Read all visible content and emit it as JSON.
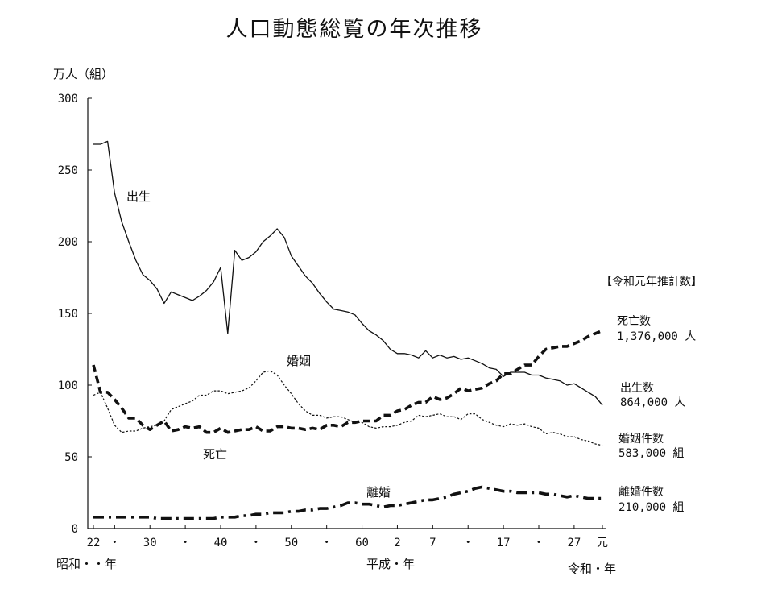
{
  "chart_data": {
    "type": "line",
    "title": "人口動態総覧の年次推移",
    "ylabel": "万人（組）",
    "ylim": [
      0,
      300
    ],
    "yticks": [
      0,
      50,
      100,
      150,
      200,
      250,
      300
    ],
    "xlim": [
      1947,
      2019
    ],
    "x_tick_labels": [
      {
        "x": 1947,
        "label": "22"
      },
      {
        "x": 1950,
        "label": "・"
      },
      {
        "x": 1955,
        "label": "30"
      },
      {
        "x": 1960,
        "label": "・"
      },
      {
        "x": 1965,
        "label": "40"
      },
      {
        "x": 1970,
        "label": "・"
      },
      {
        "x": 1975,
        "label": "50"
      },
      {
        "x": 1980,
        "label": "・"
      },
      {
        "x": 1985,
        "label": "60"
      },
      {
        "x": 1990,
        "label": "2"
      },
      {
        "x": 1995,
        "label": "7"
      },
      {
        "x": 2000,
        "label": "・"
      },
      {
        "x": 2005,
        "label": "17"
      },
      {
        "x": 2010,
        "label": "・"
      },
      {
        "x": 2015,
        "label": "27"
      },
      {
        "x": 2019,
        "label": "元"
      }
    ],
    "era_labels": {
      "showa": "昭和・・年",
      "heisei": "平成・年",
      "reiwa": "令和・年"
    },
    "legend_header": "【令和元年推計数】",
    "series": [
      {
        "name": "出生",
        "style": "solid-thin",
        "color": "#111111",
        "end_label": "出生数",
        "end_value": "864,000 人",
        "points": [
          [
            1947,
            268
          ],
          [
            1948,
            268
          ],
          [
            1949,
            270
          ],
          [
            1950,
            234
          ],
          [
            1951,
            214
          ],
          [
            1952,
            200
          ],
          [
            1953,
            187
          ],
          [
            1954,
            177
          ],
          [
            1955,
            173
          ],
          [
            1956,
            167
          ],
          [
            1957,
            157
          ],
          [
            1958,
            165
          ],
          [
            1959,
            163
          ],
          [
            1960,
            161
          ],
          [
            1961,
            159
          ],
          [
            1962,
            162
          ],
          [
            1963,
            166
          ],
          [
            1964,
            172
          ],
          [
            1965,
            182
          ],
          [
            1966,
            136
          ],
          [
            1967,
            194
          ],
          [
            1968,
            187
          ],
          [
            1969,
            189
          ],
          [
            1970,
            193
          ],
          [
            1971,
            200
          ],
          [
            1972,
            204
          ],
          [
            1973,
            209
          ],
          [
            1974,
            203
          ],
          [
            1975,
            190
          ],
          [
            1976,
            183
          ],
          [
            1977,
            176
          ],
          [
            1978,
            171
          ],
          [
            1979,
            164
          ],
          [
            1980,
            158
          ],
          [
            1981,
            153
          ],
          [
            1982,
            152
          ],
          [
            1983,
            151
          ],
          [
            1984,
            149
          ],
          [
            1985,
            143
          ],
          [
            1986,
            138
          ],
          [
            1987,
            135
          ],
          [
            1988,
            131
          ],
          [
            1989,
            125
          ],
          [
            1990,
            122
          ],
          [
            1991,
            122
          ],
          [
            1992,
            121
          ],
          [
            1993,
            119
          ],
          [
            1994,
            124
          ],
          [
            1995,
            119
          ],
          [
            1996,
            121
          ],
          [
            1997,
            119
          ],
          [
            1998,
            120
          ],
          [
            1999,
            118
          ],
          [
            2000,
            119
          ],
          [
            2001,
            117
          ],
          [
            2002,
            115
          ],
          [
            2003,
            112
          ],
          [
            2004,
            111
          ],
          [
            2005,
            106
          ],
          [
            2006,
            109
          ],
          [
            2007,
            109
          ],
          [
            2008,
            109
          ],
          [
            2009,
            107
          ],
          [
            2010,
            107
          ],
          [
            2011,
            105
          ],
          [
            2012,
            104
          ],
          [
            2013,
            103
          ],
          [
            2014,
            100
          ],
          [
            2015,
            101
          ],
          [
            2016,
            98
          ],
          [
            2017,
            95
          ],
          [
            2018,
            92
          ],
          [
            2019,
            86
          ]
        ]
      },
      {
        "name": "死亡",
        "style": "dashed-thick",
        "color": "#111111",
        "end_label": "死亡数",
        "end_value": "1,376,000 人",
        "points": [
          [
            1947,
            114
          ],
          [
            1948,
            95
          ],
          [
            1949,
            95
          ],
          [
            1950,
            90
          ],
          [
            1951,
            84
          ],
          [
            1952,
            77
          ],
          [
            1953,
            77
          ],
          [
            1954,
            72
          ],
          [
            1955,
            69
          ],
          [
            1956,
            72
          ],
          [
            1957,
            75
          ],
          [
            1958,
            68
          ],
          [
            1959,
            69
          ],
          [
            1960,
            71
          ],
          [
            1961,
            70
          ],
          [
            1962,
            71
          ],
          [
            1963,
            67
          ],
          [
            1964,
            67
          ],
          [
            1965,
            70
          ],
          [
            1966,
            67
          ],
          [
            1967,
            68
          ],
          [
            1968,
            69
          ],
          [
            1969,
            69
          ],
          [
            1970,
            71
          ],
          [
            1971,
            68
          ],
          [
            1972,
            68
          ],
          [
            1973,
            71
          ],
          [
            1974,
            71
          ],
          [
            1975,
            70
          ],
          [
            1976,
            70
          ],
          [
            1977,
            69
          ],
          [
            1978,
            70
          ],
          [
            1979,
            69
          ],
          [
            1980,
            72
          ],
          [
            1981,
            72
          ],
          [
            1982,
            71
          ],
          [
            1983,
            74
          ],
          [
            1984,
            74
          ],
          [
            1985,
            75
          ],
          [
            1986,
            75
          ],
          [
            1987,
            75
          ],
          [
            1988,
            79
          ],
          [
            1989,
            79
          ],
          [
            1990,
            82
          ],
          [
            1991,
            83
          ],
          [
            1992,
            86
          ],
          [
            1993,
            88
          ],
          [
            1994,
            88
          ],
          [
            1995,
            92
          ],
          [
            1996,
            90
          ],
          [
            1997,
            91
          ],
          [
            1998,
            94
          ],
          [
            1999,
            98
          ],
          [
            2000,
            96
          ],
          [
            2001,
            97
          ],
          [
            2002,
            98
          ],
          [
            2003,
            101
          ],
          [
            2004,
            103
          ],
          [
            2005,
            108
          ],
          [
            2006,
            108
          ],
          [
            2007,
            111
          ],
          [
            2008,
            114
          ],
          [
            2009,
            114
          ],
          [
            2010,
            120
          ],
          [
            2011,
            125
          ],
          [
            2012,
            126
          ],
          [
            2013,
            127
          ],
          [
            2014,
            127
          ],
          [
            2015,
            129
          ],
          [
            2016,
            131
          ],
          [
            2017,
            134
          ],
          [
            2018,
            136
          ],
          [
            2019,
            138
          ]
        ]
      },
      {
        "name": "婚姻",
        "style": "dotted-thin",
        "color": "#111111",
        "end_label": "婚姻件数",
        "end_value": "583,000 組",
        "points": [
          [
            1947,
            93
          ],
          [
            1948,
            95
          ],
          [
            1949,
            84
          ],
          [
            1950,
            72
          ],
          [
            1951,
            67
          ],
          [
            1952,
            68
          ],
          [
            1953,
            68
          ],
          [
            1954,
            70
          ],
          [
            1955,
            71
          ],
          [
            1956,
            72
          ],
          [
            1957,
            75
          ],
          [
            1958,
            83
          ],
          [
            1959,
            85
          ],
          [
            1960,
            87
          ],
          [
            1961,
            89
          ],
          [
            1962,
            93
          ],
          [
            1963,
            93
          ],
          [
            1964,
            96
          ],
          [
            1965,
            96
          ],
          [
            1966,
            94
          ],
          [
            1967,
            95
          ],
          [
            1968,
            96
          ],
          [
            1969,
            98
          ],
          [
            1970,
            103
          ],
          [
            1971,
            109
          ],
          [
            1972,
            110
          ],
          [
            1973,
            107
          ],
          [
            1974,
            100
          ],
          [
            1975,
            94
          ],
          [
            1976,
            87
          ],
          [
            1977,
            82
          ],
          [
            1978,
            79
          ],
          [
            1979,
            79
          ],
          [
            1980,
            77
          ],
          [
            1981,
            78
          ],
          [
            1982,
            78
          ],
          [
            1983,
            76
          ],
          [
            1984,
            74
          ],
          [
            1985,
            74
          ],
          [
            1986,
            71
          ],
          [
            1987,
            70
          ],
          [
            1988,
            71
          ],
          [
            1989,
            71
          ],
          [
            1990,
            72
          ],
          [
            1991,
            74
          ],
          [
            1992,
            75
          ],
          [
            1993,
            79
          ],
          [
            1994,
            78
          ],
          [
            1995,
            79
          ],
          [
            1996,
            80
          ],
          [
            1997,
            78
          ],
          [
            1998,
            78
          ],
          [
            1999,
            76
          ],
          [
            2000,
            80
          ],
          [
            2001,
            80
          ],
          [
            2002,
            76
          ],
          [
            2003,
            74
          ],
          [
            2004,
            72
          ],
          [
            2005,
            71
          ],
          [
            2006,
            73
          ],
          [
            2007,
            72
          ],
          [
            2008,
            73
          ],
          [
            2009,
            71
          ],
          [
            2010,
            70
          ],
          [
            2011,
            66
          ],
          [
            2012,
            67
          ],
          [
            2013,
            66
          ],
          [
            2014,
            64
          ],
          [
            2015,
            64
          ],
          [
            2016,
            62
          ],
          [
            2017,
            61
          ],
          [
            2018,
            59
          ],
          [
            2019,
            58
          ]
        ]
      },
      {
        "name": "離婚",
        "style": "dashdot-thick",
        "color": "#111111",
        "end_label": "離婚件数",
        "end_value": "210,000 組",
        "points": [
          [
            1947,
            8
          ],
          [
            1948,
            8
          ],
          [
            1949,
            8
          ],
          [
            1950,
            8
          ],
          [
            1951,
            8
          ],
          [
            1952,
            8
          ],
          [
            1953,
            8
          ],
          [
            1954,
            8
          ],
          [
            1955,
            8
          ],
          [
            1956,
            7
          ],
          [
            1957,
            7
          ],
          [
            1958,
            7
          ],
          [
            1959,
            7
          ],
          [
            1960,
            7
          ],
          [
            1961,
            7
          ],
          [
            1962,
            7
          ],
          [
            1963,
            7
          ],
          [
            1964,
            7
          ],
          [
            1965,
            8
          ],
          [
            1966,
            8
          ],
          [
            1967,
            8
          ],
          [
            1968,
            9
          ],
          [
            1969,
            9
          ],
          [
            1970,
            10
          ],
          [
            1971,
            10
          ],
          [
            1972,
            11
          ],
          [
            1973,
            11
          ],
          [
            1974,
            11
          ],
          [
            1975,
            12
          ],
          [
            1976,
            12
          ],
          [
            1977,
            13
          ],
          [
            1978,
            13
          ],
          [
            1979,
            14
          ],
          [
            1980,
            14
          ],
          [
            1981,
            15
          ],
          [
            1982,
            16
          ],
          [
            1983,
            18
          ],
          [
            1984,
            18
          ],
          [
            1985,
            17
          ],
          [
            1986,
            17
          ],
          [
            1987,
            16
          ],
          [
            1988,
            15
          ],
          [
            1989,
            16
          ],
          [
            1990,
            16
          ],
          [
            1991,
            17
          ],
          [
            1992,
            18
          ],
          [
            1993,
            19
          ],
          [
            1994,
            20
          ],
          [
            1995,
            20
          ],
          [
            1996,
            21
          ],
          [
            1997,
            22
          ],
          [
            1998,
            24
          ],
          [
            1999,
            25
          ],
          [
            2000,
            26
          ],
          [
            2001,
            28
          ],
          [
            2002,
            29
          ],
          [
            2003,
            28
          ],
          [
            2004,
            27
          ],
          [
            2005,
            26
          ],
          [
            2006,
            26
          ],
          [
            2007,
            25
          ],
          [
            2008,
            25
          ],
          [
            2009,
            25
          ],
          [
            2010,
            25
          ],
          [
            2011,
            24
          ],
          [
            2012,
            24
          ],
          [
            2013,
            23
          ],
          [
            2014,
            22
          ],
          [
            2015,
            23
          ],
          [
            2016,
            22
          ],
          [
            2017,
            21
          ],
          [
            2018,
            21
          ],
          [
            2019,
            21
          ]
        ]
      }
    ]
  }
}
